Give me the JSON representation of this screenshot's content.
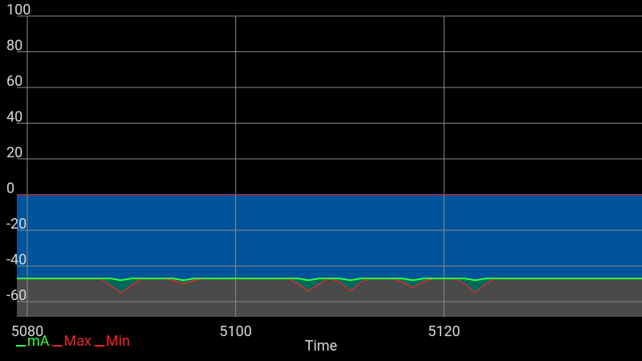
{
  "chart_data": {
    "type": "area",
    "xlabel": "Time",
    "x": [
      5079,
      5080,
      5081,
      5082,
      5083,
      5084,
      5085,
      5086,
      5087,
      5088,
      5089,
      5090,
      5091,
      5092,
      5093,
      5094,
      5095,
      5096,
      5097,
      5098,
      5099,
      5100,
      5101,
      5102,
      5103,
      5104,
      5105,
      5106,
      5107,
      5108,
      5109,
      5110,
      5111,
      5112,
      5113,
      5114,
      5115,
      5116,
      5117,
      5118,
      5119,
      5120,
      5121,
      5122,
      5123,
      5124,
      5125,
      5126,
      5127,
      5128,
      5129,
      5130,
      5131,
      5132,
      5133,
      5134,
      5135,
      5136,
      5137,
      5138,
      5139
    ],
    "series": [
      {
        "name": "mA",
        "color": "#33ff33",
        "fill": "#00695c",
        "values": [
          -47,
          -47,
          -47,
          -47,
          -47,
          -47,
          -47,
          -47,
          -47,
          -47,
          -48,
          -47,
          -47,
          -47,
          -47,
          -47,
          -48,
          -47,
          -47,
          -47,
          -47,
          -47,
          -47,
          -47,
          -47,
          -47,
          -47,
          -47,
          -48,
          -47,
          -47,
          -47,
          -48,
          -47,
          -47,
          -47,
          -47,
          -47,
          -48,
          -47,
          -47,
          -47,
          -47,
          -47,
          -48,
          -47,
          -47,
          -47,
          -47,
          -47,
          -47,
          -47,
          -47,
          -47,
          -47,
          -47,
          -47,
          -47,
          -47,
          -47,
          -47
        ]
      },
      {
        "name": "Max",
        "color": "#e02828",
        "fill": "#00559a",
        "values": [
          0,
          0,
          0,
          0,
          0,
          0,
          0,
          0,
          0,
          0,
          0,
          0,
          0,
          0,
          0,
          0,
          0,
          0,
          0,
          0,
          0,
          0,
          0,
          0,
          0,
          0,
          0,
          0,
          0,
          0,
          0,
          0,
          0,
          0,
          0,
          0,
          0,
          0,
          0,
          0,
          0,
          0,
          0,
          0,
          0,
          0,
          0,
          0,
          0,
          0,
          0,
          0,
          0,
          0,
          0,
          0,
          0,
          0,
          0,
          0,
          0
        ]
      },
      {
        "name": "Min",
        "color": "#ff2020",
        "fill": "#4a4a4a",
        "values": [
          -47,
          -47,
          -47,
          -47,
          -47,
          -47,
          -47,
          -47,
          -47,
          -51,
          -55,
          -51,
          -47,
          -47,
          -47,
          -48,
          -50,
          -48,
          -47,
          -47,
          -47,
          -47,
          -47,
          -47,
          -47,
          -47,
          -47,
          -50,
          -54,
          -50,
          -47,
          -49,
          -54,
          -49,
          -47,
          -47,
          -47,
          -49,
          -52,
          -49,
          -47,
          -47,
          -47,
          -50,
          -55,
          -50,
          -47,
          -47,
          -47,
          -47,
          -47,
          -47,
          -47,
          -47,
          -47,
          -47,
          -47,
          -47,
          -47,
          -47,
          -47
        ]
      }
    ],
    "xlim": [
      5079,
      5139
    ],
    "xticks": [
      5080,
      5100,
      5120
    ],
    "ylim": [
      -68.5,
      100
    ],
    "yticks": [
      100,
      80,
      60,
      40,
      20,
      0,
      -20,
      -40,
      -60
    ],
    "grid": true,
    "legend": "bottom-left"
  }
}
